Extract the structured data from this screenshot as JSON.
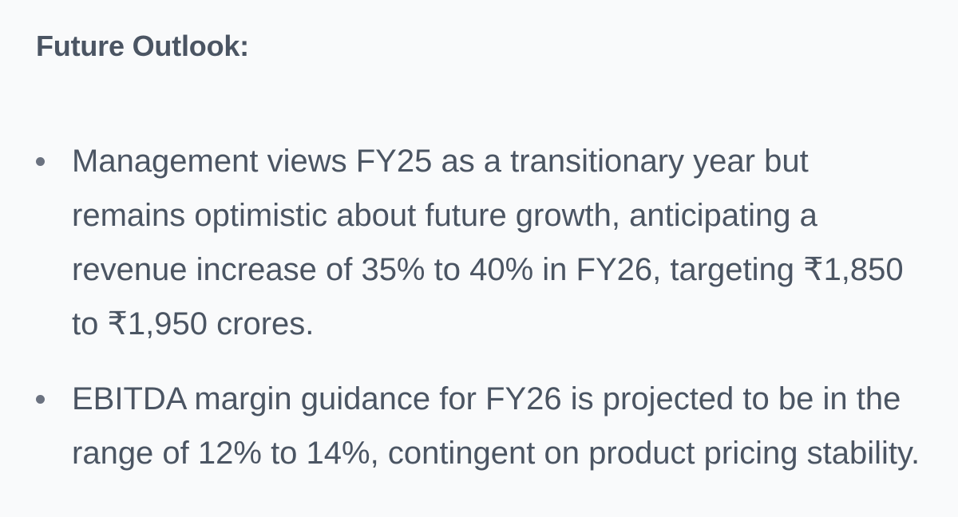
{
  "section": {
    "title": "Future Outlook:"
  },
  "bullets": [
    {
      "text": "Management views FY25 as a transitionary year but remains optimistic about future growth, anticipating a revenue increase of 35% to 40% in FY26, targeting ₹1,850 to ₹1,950 crores."
    },
    {
      "text": "EBITDA margin guidance for FY26 is projected to be in the range of 12% to 14%, contingent on product pricing stability."
    }
  ],
  "colors": {
    "background": "#f9fafb",
    "text": "#4b5563",
    "bullet_dot": "#6b7280"
  }
}
